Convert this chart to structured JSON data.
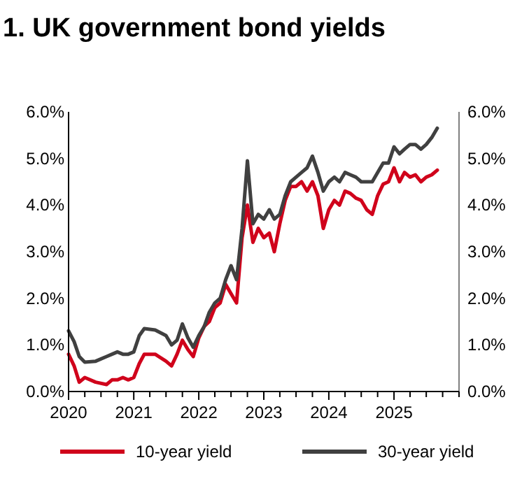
{
  "chart_data": {
    "type": "line",
    "title": "1. UK government bond yields",
    "x": [
      "2020-01",
      "2020-02",
      "2020-03",
      "2020-04",
      "2020-06",
      "2020-08",
      "2020-09",
      "2020-10",
      "2020-11",
      "2020-12",
      "2021-01",
      "2021-02",
      "2021-03",
      "2021-05",
      "2021-07",
      "2021-08",
      "2021-09",
      "2021-10",
      "2021-11",
      "2021-12",
      "2022-01",
      "2022-02",
      "2022-03",
      "2022-04",
      "2022-05",
      "2022-06",
      "2022-07",
      "2022-08",
      "2022-09",
      "2022-10",
      "2022-11",
      "2022-12",
      "2023-01",
      "2023-02",
      "2023-03",
      "2023-04",
      "2023-05",
      "2023-06",
      "2023-07",
      "2023-08",
      "2023-09",
      "2023-10",
      "2023-11",
      "2023-12",
      "2024-01",
      "2024-02",
      "2024-03",
      "2024-04",
      "2024-05",
      "2024-06",
      "2024-07",
      "2024-08",
      "2024-09",
      "2024-10",
      "2024-11",
      "2024-12",
      "2025-01",
      "2025-02",
      "2025-03",
      "2025-04",
      "2025-05",
      "2025-06",
      "2025-07",
      "2025-08",
      "2025-09"
    ],
    "series": [
      {
        "name": "10-year yield",
        "color": "#d0021b",
        "values": [
          0.8,
          0.55,
          0.2,
          0.3,
          0.2,
          0.15,
          0.25,
          0.25,
          0.3,
          0.25,
          0.3,
          0.6,
          0.8,
          0.8,
          0.65,
          0.55,
          0.8,
          1.1,
          0.9,
          0.75,
          1.15,
          1.4,
          1.5,
          1.8,
          1.9,
          2.3,
          2.1,
          1.9,
          3.3,
          4.0,
          3.2,
          3.5,
          3.3,
          3.4,
          3.0,
          3.6,
          4.1,
          4.4,
          4.4,
          4.5,
          4.3,
          4.5,
          4.2,
          3.5,
          3.9,
          4.1,
          4.0,
          4.3,
          4.25,
          4.15,
          4.1,
          3.9,
          3.8,
          4.2,
          4.45,
          4.5,
          4.8,
          4.5,
          4.7,
          4.6,
          4.65,
          4.5,
          4.6,
          4.65,
          4.75
        ]
      },
      {
        "name": "30-year yield",
        "color": "#404040",
        "values": [
          1.3,
          1.07,
          0.75,
          0.63,
          0.65,
          0.75,
          0.8,
          0.85,
          0.8,
          0.8,
          0.85,
          1.2,
          1.35,
          1.32,
          1.2,
          1.0,
          1.1,
          1.45,
          1.15,
          0.95,
          1.2,
          1.4,
          1.7,
          1.9,
          2.0,
          2.4,
          2.7,
          2.4,
          3.5,
          4.95,
          3.6,
          3.8,
          3.7,
          3.9,
          3.7,
          3.8,
          4.2,
          4.5,
          4.6,
          4.7,
          4.8,
          5.05,
          4.7,
          4.3,
          4.5,
          4.6,
          4.5,
          4.7,
          4.65,
          4.6,
          4.5,
          4.5,
          4.5,
          4.7,
          4.9,
          4.9,
          5.25,
          5.1,
          5.2,
          5.3,
          5.3,
          5.2,
          5.3,
          5.45,
          5.65
        ]
      }
    ],
    "xlim": [
      "2020-01",
      "2026-01"
    ],
    "xticks": [
      {
        "value": "2020-01",
        "label": "2020"
      },
      {
        "value": "2020-04",
        "label": null
      },
      {
        "value": "2020-07",
        "label": null
      },
      {
        "value": "2020-10",
        "label": null
      },
      {
        "value": "2021-01",
        "label": "2021"
      },
      {
        "value": "2021-04",
        "label": null
      },
      {
        "value": "2021-07",
        "label": null
      },
      {
        "value": "2021-10",
        "label": null
      },
      {
        "value": "2022-01",
        "label": "2022"
      },
      {
        "value": "2022-04",
        "label": null
      },
      {
        "value": "2022-07",
        "label": null
      },
      {
        "value": "2022-10",
        "label": null
      },
      {
        "value": "2023-01",
        "label": "2023"
      },
      {
        "value": "2023-04",
        "label": null
      },
      {
        "value": "2023-07",
        "label": null
      },
      {
        "value": "2023-10",
        "label": null
      },
      {
        "value": "2024-01",
        "label": "2024"
      },
      {
        "value": "2024-04",
        "label": null
      },
      {
        "value": "2024-07",
        "label": null
      },
      {
        "value": "2024-10",
        "label": null
      },
      {
        "value": "2025-01",
        "label": "2025"
      },
      {
        "value": "2025-04",
        "label": null
      },
      {
        "value": "2025-07",
        "label": null
      },
      {
        "value": "2025-10",
        "label": null
      },
      {
        "value": "2026-01",
        "label": null
      }
    ],
    "ylim": [
      0,
      6
    ],
    "yticks": [
      {
        "value": 0,
        "label": "0.0%"
      },
      {
        "value": 1,
        "label": "1.0%"
      },
      {
        "value": 2,
        "label": "2.0%"
      },
      {
        "value": 3,
        "label": "3.0%"
      },
      {
        "value": 4,
        "label": "4.0%"
      },
      {
        "value": 5,
        "label": "5.0%"
      },
      {
        "value": 6,
        "label": "6.0%"
      }
    ],
    "y2lim": [
      0,
      6
    ],
    "y2ticks": [
      {
        "value": 0,
        "label": "0.0%"
      },
      {
        "value": 1,
        "label": "1.0%"
      },
      {
        "value": 2,
        "label": "2.0%"
      },
      {
        "value": 3,
        "label": "3.0%"
      },
      {
        "value": 4,
        "label": "4.0%"
      },
      {
        "value": 5,
        "label": "5.0%"
      },
      {
        "value": 6,
        "label": "6.0%"
      }
    ],
    "grid": false,
    "legend": "bottom",
    "marker": "none",
    "line_style": "solid"
  }
}
